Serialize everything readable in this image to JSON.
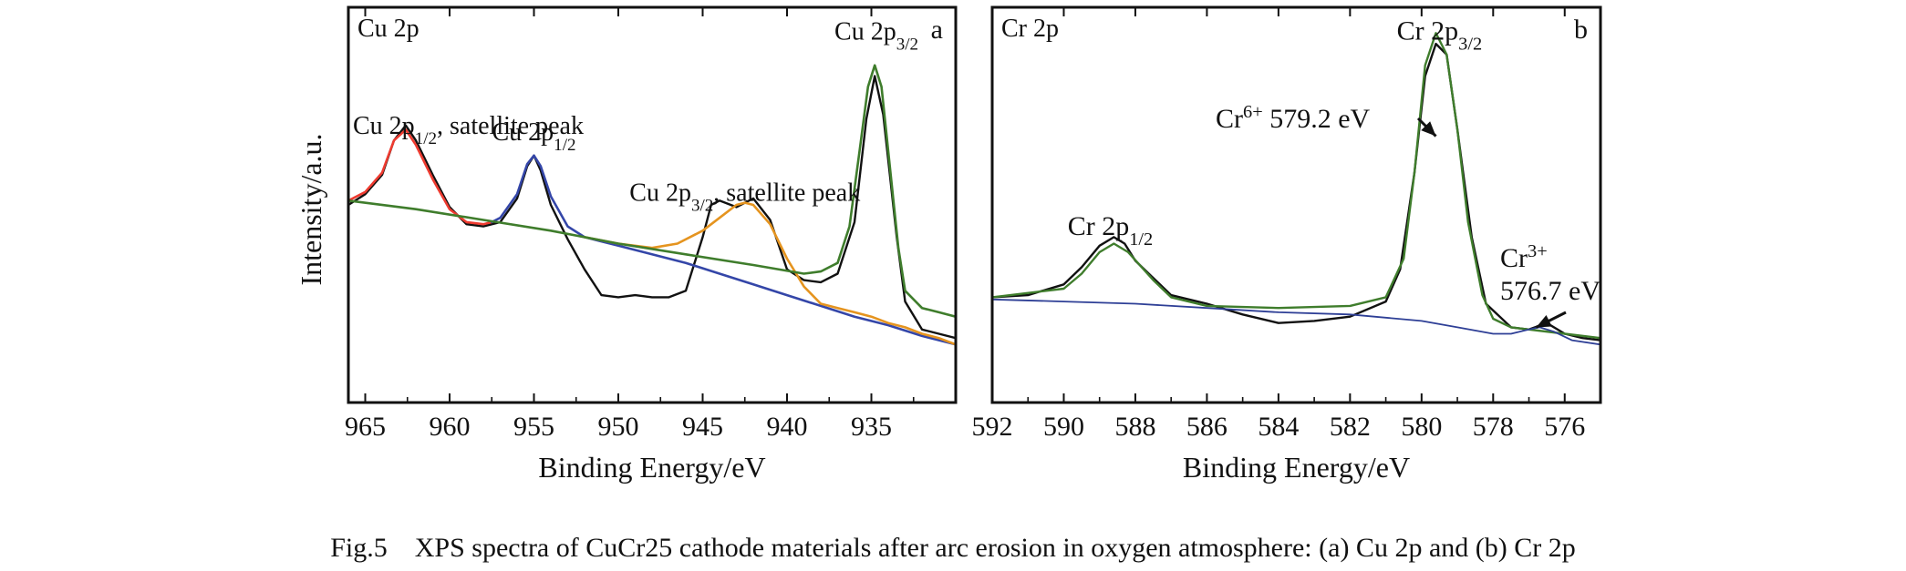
{
  "figure": {
    "caption": "Fig.5    XPS spectra of CuCr25 cathode materials after arc erosion in oxygen atmosphere: (a) Cu 2p and (b) Cr 2p",
    "y_label": "Intensity/a.u."
  },
  "chart_data": [
    {
      "type": "line",
      "panel_letter": "a",
      "title": "Cu 2p",
      "xlabel": "Binding Energy/eV",
      "ylabel": "Intensity/a.u.",
      "xlim": [
        966,
        930
      ],
      "xticks": [
        965,
        960,
        955,
        950,
        945,
        940,
        935
      ],
      "x_reversed": true,
      "grid": false,
      "annotations": [
        {
          "text": "Cu 2p",
          "sub": "1/2",
          "after": ", satellite peak",
          "at": [
            962.5,
            1.03
          ]
        },
        {
          "text": "Cu 2p",
          "sub": "1/2",
          "after": "",
          "at": [
            955.0,
            1.0
          ]
        },
        {
          "text": "Cu 2p",
          "sub": "3/2",
          "after": ", satellite peak",
          "at": [
            942.5,
            0.72
          ]
        },
        {
          "text": "Cu 2p",
          "sub": "3/2",
          "after": "",
          "at": [
            934.7,
            1.47
          ]
        }
      ],
      "series": [
        {
          "color": "#111111",
          "width": 2.4,
          "x": [
            966,
            965,
            964,
            963.3,
            962.6,
            962.0,
            961.0,
            960.0,
            959.0,
            958.0,
            957.0,
            956.0,
            955.4,
            955.0,
            954.6,
            954.0,
            953.0,
            952.0,
            951.0,
            950.0,
            949.0,
            948.0,
            947.0,
            946.0,
            945.0,
            944.5,
            944.0,
            943.0,
            942.0,
            941.0,
            940.0,
            939.0,
            938.0,
            937.0,
            936.0,
            935.3,
            934.8,
            934.3,
            933.5,
            933.0,
            932.0,
            931.0,
            930.0
          ],
          "y": [
            0.7,
            0.75,
            0.84,
            1.0,
            1.07,
            1.0,
            0.84,
            0.69,
            0.61,
            0.6,
            0.62,
            0.73,
            0.88,
            0.93,
            0.86,
            0.7,
            0.54,
            0.4,
            0.28,
            0.27,
            0.28,
            0.27,
            0.27,
            0.3,
            0.55,
            0.7,
            0.72,
            0.69,
            0.73,
            0.63,
            0.4,
            0.35,
            0.34,
            0.38,
            0.62,
            1.1,
            1.3,
            1.12,
            0.55,
            0.25,
            0.12,
            0.1,
            0.08
          ]
        },
        {
          "color": "#ee3b30",
          "width": 2.6,
          "x": [
            966,
            965,
            964,
            963.3,
            962.6,
            962.0,
            961.0,
            960.0,
            959.0,
            958.0,
            957.5
          ],
          "y": [
            0.72,
            0.76,
            0.85,
            1.0,
            1.05,
            0.98,
            0.82,
            0.68,
            0.62,
            0.61,
            0.62
          ]
        },
        {
          "color": "#3446a8",
          "width": 2.6,
          "x": [
            957.5,
            957.0,
            956.0,
            955.4,
            955.0,
            954.6,
            954.0,
            953.0,
            952.0,
            951.0,
            950.0,
            949.0,
            948.0,
            946.0,
            944.0,
            942.0,
            940.0,
            938.0,
            936.0,
            934.0,
            932.0,
            930.0
          ],
          "y": [
            0.62,
            0.64,
            0.75,
            0.89,
            0.93,
            0.88,
            0.74,
            0.6,
            0.55,
            0.53,
            0.51,
            0.49,
            0.47,
            0.43,
            0.38,
            0.33,
            0.28,
            0.23,
            0.18,
            0.14,
            0.09,
            0.05
          ]
        },
        {
          "color": "#e5941f",
          "width": 2.6,
          "x": [
            952.0,
            950.0,
            948.0,
            946.5,
            945.0,
            944.0,
            943.0,
            942.5,
            942.0,
            941.0,
            940.0,
            939.0,
            938.0,
            937.0,
            936.0,
            935.0,
            934.0,
            933.0,
            932.0,
            931.0,
            930.0
          ],
          "y": [
            0.55,
            0.52,
            0.5,
            0.52,
            0.58,
            0.64,
            0.7,
            0.71,
            0.7,
            0.61,
            0.45,
            0.32,
            0.24,
            0.22,
            0.2,
            0.18,
            0.15,
            0.13,
            0.1,
            0.08,
            0.05
          ]
        },
        {
          "color": "#3f7d2c",
          "width": 2.6,
          "x": [
            966,
            962,
            958,
            954,
            950,
            946,
            942,
            939,
            938,
            937,
            936.3,
            935.7,
            935.2,
            934.8,
            934.4,
            934.0,
            933.4,
            933.0,
            932.0,
            931.0,
            930.0
          ],
          "y": [
            0.72,
            0.68,
            0.63,
            0.58,
            0.52,
            0.47,
            0.42,
            0.38,
            0.39,
            0.43,
            0.6,
            0.95,
            1.25,
            1.35,
            1.25,
            0.95,
            0.5,
            0.3,
            0.22,
            0.2,
            0.18
          ]
        }
      ]
    },
    {
      "type": "line",
      "panel_letter": "b",
      "title": "Cr 2p",
      "xlabel": "Binding Energy/eV",
      "xlim": [
        592,
        575
      ],
      "xticks": [
        592,
        590,
        588,
        586,
        584,
        582,
        580,
        578,
        576
      ],
      "x_reversed": true,
      "grid": false,
      "annotations": [
        {
          "text": "Cr 2p",
          "sub": "3/2",
          "after": "",
          "at": [
            579.5,
            1.47
          ]
        },
        {
          "text": "Cr 2p",
          "sub": "1/2",
          "after": "",
          "at": [
            588.7,
            0.56
          ]
        },
        {
          "text": "Cr",
          "sup": "6+",
          "after": " 579.2 eV",
          "arrow_to": [
            579.6,
            1.02
          ]
        },
        {
          "text": "Cr",
          "sup": "3+",
          "after": "",
          "line2": "576.7 eV",
          "arrow_to": [
            576.8,
            0.13
          ]
        }
      ],
      "series": [
        {
          "color": "#111111",
          "width": 2.4,
          "x": [
            592,
            591,
            590,
            589.5,
            589.0,
            588.6,
            588.3,
            588.0,
            587.0,
            586.0,
            585.0,
            584.0,
            583.0,
            582.0,
            581.0,
            580.6,
            580.2,
            579.9,
            579.6,
            579.3,
            579.0,
            578.6,
            578.2,
            577.5,
            577.0,
            576.5,
            576.0,
            575.5,
            575.0
          ],
          "y": [
            0.27,
            0.28,
            0.33,
            0.41,
            0.51,
            0.55,
            0.52,
            0.44,
            0.28,
            0.24,
            0.19,
            0.15,
            0.16,
            0.18,
            0.25,
            0.4,
            0.85,
            1.3,
            1.45,
            1.4,
            1.05,
            0.55,
            0.24,
            0.13,
            0.12,
            0.15,
            0.1,
            0.08,
            0.07
          ]
        },
        {
          "color": "#3f7d2c",
          "width": 2.4,
          "x": [
            592,
            590,
            589.5,
            589.0,
            588.6,
            588.2,
            587.5,
            587.0,
            586.0,
            584.0,
            582.0,
            581.0,
            580.5,
            580.2,
            579.9,
            579.6,
            579.3,
            579.0,
            578.7,
            578.3,
            578.0,
            577.5,
            577.0,
            576.0,
            575.0
          ],
          "y": [
            0.27,
            0.31,
            0.38,
            0.48,
            0.52,
            0.48,
            0.35,
            0.27,
            0.23,
            0.22,
            0.23,
            0.27,
            0.45,
            0.85,
            1.35,
            1.5,
            1.4,
            1.05,
            0.62,
            0.28,
            0.17,
            0.13,
            0.12,
            0.1,
            0.08
          ]
        },
        {
          "color": "#2e3f96",
          "width": 1.8,
          "x": [
            592,
            590,
            588,
            586,
            584,
            582,
            580,
            579,
            578,
            577.5,
            577.0,
            576.7,
            576.3,
            575.8,
            575.0
          ],
          "y": [
            0.26,
            0.25,
            0.24,
            0.22,
            0.2,
            0.19,
            0.16,
            0.13,
            0.1,
            0.1,
            0.12,
            0.13,
            0.11,
            0.07,
            0.05
          ]
        }
      ]
    }
  ]
}
